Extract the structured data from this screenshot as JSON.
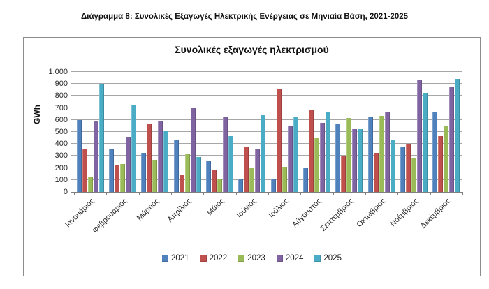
{
  "page_title": "Διάγραμμα 8: Συνολικές Εξαγωγές Ηλεκτρικής Ενέργειας σε Μηνιαία Βάση, 2021-2025",
  "chart_data": {
    "type": "bar",
    "title": "Συνολικές εξαγωγές ηλεκτρισμού",
    "ylabel": "GWh",
    "xlabel": "",
    "ylim": [
      0,
      1000
    ],
    "y_tick_step": 100,
    "y_tick_labels": [
      "0",
      "100",
      "200",
      "300",
      "400",
      "500",
      "600",
      "700",
      "800",
      "900",
      "1.000"
    ],
    "grid": true,
    "legend_position": "bottom",
    "categories": [
      "Ιανουάριος",
      "Φεβρουάριος",
      "Μάρτιος",
      "Απρίλιος",
      "Μάιος",
      "Ιούνιος",
      "Ιούλιος",
      "Αύγουστος",
      "Σεπτέμβριος",
      "Οκτώβριος",
      "Νοέμβριος",
      "Δεκέμβριος"
    ],
    "series": [
      {
        "name": "2021",
        "color": "#4F81BD",
        "values": [
          600,
          355,
          325,
          430,
          260,
          105,
          105,
          195,
          570,
          630,
          380,
          660
        ]
      },
      {
        "name": "2022",
        "color": "#C0504D",
        "values": [
          360,
          225,
          570,
          145,
          180,
          380,
          855,
          685,
          300,
          325,
          400,
          465
        ]
      },
      {
        "name": "2023",
        "color": "#9BBB59",
        "values": [
          130,
          235,
          265,
          320,
          110,
          205,
          210,
          445,
          615,
          635,
          280,
          545
        ]
      },
      {
        "name": "2024",
        "color": "#8064A2",
        "values": [
          585,
          460,
          595,
          700,
          620,
          355,
          555,
          575,
          525,
          660,
          930,
          870
        ]
      },
      {
        "name": "2025",
        "color": "#4BACC6",
        "values": [
          895,
          725,
          510,
          290,
          465,
          640,
          630,
          665,
          525,
          430,
          825,
          940
        ]
      }
    ],
    "colors": {
      "gridline": "#a6a6a6",
      "axis": "#7f7f7f",
      "frame_border": "#8c8c8c",
      "text": "#1a1a1a"
    }
  }
}
